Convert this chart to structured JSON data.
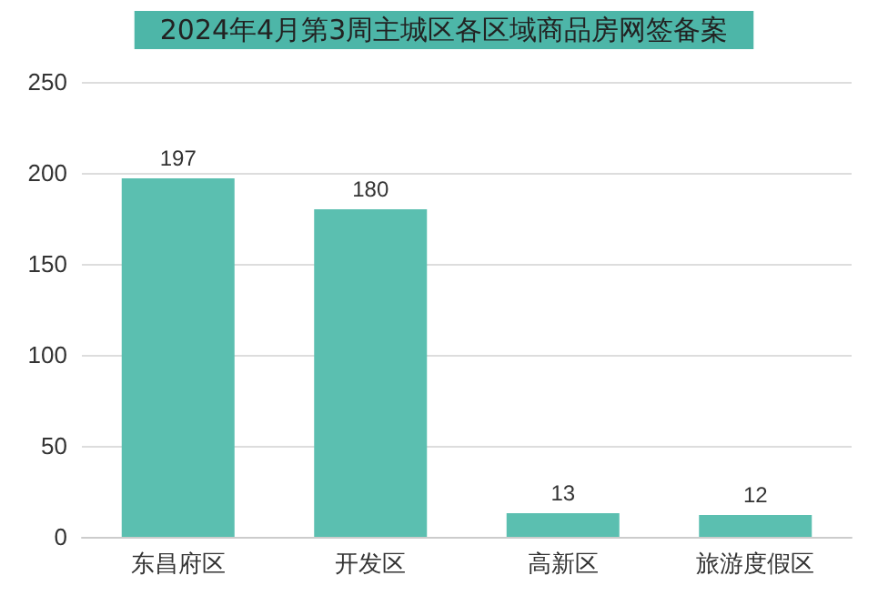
{
  "chart_data": {
    "type": "bar",
    "title": "2024年4月第3周主城区各区域商品房网签备案",
    "categories": [
      "东昌府区",
      "开发区",
      "高新区",
      "旅游度假区"
    ],
    "values": [
      197,
      180,
      13,
      12
    ],
    "color": "#5bbfb0",
    "ylim": [
      0,
      250
    ],
    "yticks": [
      0,
      50,
      100,
      150,
      200,
      250
    ],
    "grid": "y",
    "data_labels": true
  }
}
